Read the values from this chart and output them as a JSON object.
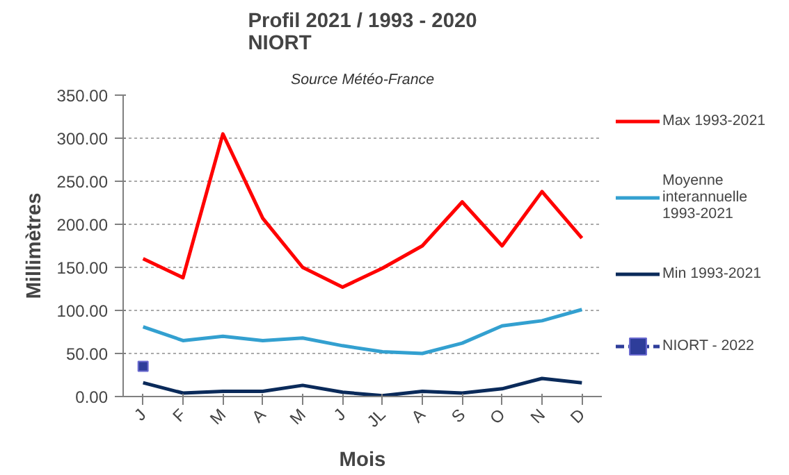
{
  "chart_data": {
    "type": "line",
    "title": "Profil 2021 / 1993 - 2020\nNIORT",
    "annotations": [
      "Source Météo-France"
    ],
    "xlabel": "Mois",
    "ylabel": "Millimètres",
    "categories": [
      "J",
      "F",
      "M",
      "A",
      "M",
      "J",
      "JL",
      "A",
      "S",
      "O",
      "N",
      "D"
    ],
    "series": [
      {
        "name": "Max 1993-2021",
        "color": "#ff0000",
        "values": [
          160,
          138,
          305,
          207,
          150,
          127,
          149,
          175,
          226,
          175,
          238,
          184
        ]
      },
      {
        "name": "Moyenne interannuelle 1993-2021",
        "color": "#33a0d0",
        "values": [
          81,
          65,
          70,
          65,
          68,
          59,
          52,
          50,
          62,
          82,
          88,
          101
        ]
      },
      {
        "name": "Min 1993-2021",
        "color": "#0a2a5a",
        "values": [
          16,
          4,
          6,
          6,
          13,
          5,
          1,
          6,
          4,
          9,
          21,
          16
        ]
      },
      {
        "name": "NIORT - 2022",
        "color": "#2e3d9a",
        "marker": "square",
        "line_style": "dashed",
        "values": [
          35,
          null,
          null,
          null,
          null,
          null,
          null,
          null,
          null,
          null,
          null,
          null
        ]
      }
    ],
    "ylim": [
      0,
      350
    ],
    "yticks": [
      {
        "value": 0,
        "label": "0.00"
      },
      {
        "value": 50,
        "label": "50.00"
      },
      {
        "value": 100,
        "label": "100.00"
      },
      {
        "value": 150,
        "label": "150.00"
      },
      {
        "value": 200,
        "label": "200.00"
      },
      {
        "value": 250,
        "label": "250.00"
      },
      {
        "value": 300,
        "label": "300.00"
      },
      {
        "value": 350,
        "label": "350.00"
      }
    ],
    "grid": "y",
    "legend": "right",
    "marker": "none",
    "line_style": "solid"
  }
}
